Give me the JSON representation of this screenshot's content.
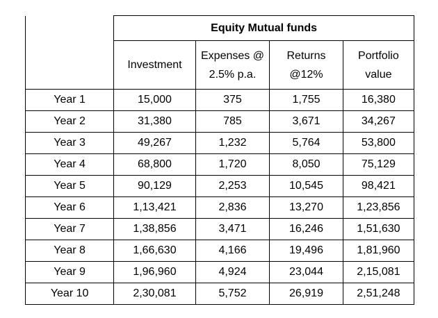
{
  "table": {
    "group_header": "Equity Mutual funds",
    "columns": [
      {
        "line1": "Investment",
        "line2": ""
      },
      {
        "line1": "Expenses @",
        "line2": "2.5% p.a."
      },
      {
        "line1": "Returns",
        "line2": "@12%"
      },
      {
        "line1": "Portfolio",
        "line2": "value"
      }
    ],
    "rows": [
      {
        "year": "Year 1",
        "investment": "15,000",
        "expenses": "375",
        "returns": "1,755",
        "portfolio": "16,380"
      },
      {
        "year": "Year 2",
        "investment": "31,380",
        "expenses": "785",
        "returns": "3,671",
        "portfolio": "34,267"
      },
      {
        "year": "Year 3",
        "investment": "49,267",
        "expenses": "1,232",
        "returns": "5,764",
        "portfolio": "53,800"
      },
      {
        "year": "Year 4",
        "investment": "68,800",
        "expenses": "1,720",
        "returns": "8,050",
        "portfolio": "75,129"
      },
      {
        "year": "Year 5",
        "investment": "90,129",
        "expenses": "2,253",
        "returns": "10,545",
        "portfolio": "98,421"
      },
      {
        "year": "Year 6",
        "investment": "1,13,421",
        "expenses": "2,836",
        "returns": "13,270",
        "portfolio": "1,23,856"
      },
      {
        "year": "Year 7",
        "investment": "1,38,856",
        "expenses": "3,471",
        "returns": "16,246",
        "portfolio": "1,51,630"
      },
      {
        "year": "Year 8",
        "investment": "1,66,630",
        "expenses": "4,166",
        "returns": "19,496",
        "portfolio": "1,81,960"
      },
      {
        "year": "Year 9",
        "investment": "1,96,960",
        "expenses": "4,924",
        "returns": "23,044",
        "portfolio": "2,15,081"
      },
      {
        "year": "Year 10",
        "investment": "2,30,081",
        "expenses": "5,752",
        "returns": "26,919",
        "portfolio": "2,51,248"
      }
    ]
  }
}
